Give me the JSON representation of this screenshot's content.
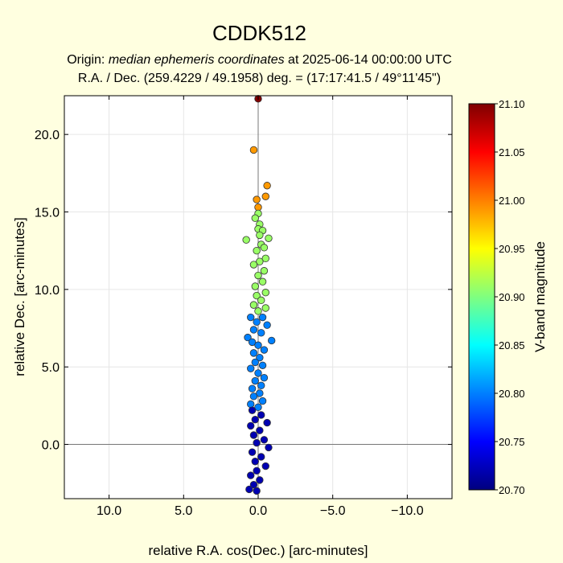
{
  "chart_data": {
    "type": "scatter",
    "title": "CDDK512",
    "subtitle_line1_prefix": "Origin: ",
    "subtitle_line1_italic": "median ephemeris coordinates",
    "subtitle_line1_suffix": " at 2025-06-14 00:00:00 UTC",
    "subtitle_line2": "R.A. / Dec. (259.4229 / 49.1958) deg. = (17:17:41.5 / 49°11'45\")",
    "xlabel": "relative R.A. cos(Dec.) [arc-minutes]",
    "ylabel": "relative Dec. [arc-minutes]",
    "xlim": [
      13.0,
      -13.0
    ],
    "ylim": [
      -3.5,
      22.5
    ],
    "x_ticks": [
      10.0,
      5.0,
      0.0,
      -5.0,
      -10.0
    ],
    "x_tick_labels": [
      "10.0",
      "5.0",
      "0.0",
      "−5.0",
      "−10.0"
    ],
    "y_ticks": [
      0.0,
      5.0,
      10.0,
      15.0,
      20.0
    ],
    "y_tick_labels": [
      "0.0",
      "5.0",
      "10.0",
      "15.0",
      "20.0"
    ],
    "grid": true,
    "colorbar": {
      "label": "V-band magnitude",
      "range": [
        20.7,
        21.1
      ],
      "ticks": [
        20.7,
        20.75,
        20.8,
        20.85,
        20.9,
        20.95,
        21.0,
        21.05,
        21.1
      ],
      "tick_labels": [
        "20.70",
        "20.75",
        "20.80",
        "20.85",
        "20.90",
        "20.95",
        "21.00",
        "21.05",
        "21.10"
      ],
      "colormap": "jet"
    },
    "series": [
      {
        "points": [
          {
            "x": 0.0,
            "y": 22.3,
            "mag": 21.1
          },
          {
            "x": 0.3,
            "y": 19.0,
            "mag": 20.99
          },
          {
            "x": -0.6,
            "y": 16.7,
            "mag": 20.99
          },
          {
            "x": -0.5,
            "y": 16.0,
            "mag": 20.99
          },
          {
            "x": 0.1,
            "y": 15.8,
            "mag": 20.99
          },
          {
            "x": 0.0,
            "y": 15.3,
            "mag": 20.99
          },
          {
            "x": 0.0,
            "y": 14.9,
            "mag": 20.91
          },
          {
            "x": 0.2,
            "y": 14.6,
            "mag": 20.91
          },
          {
            "x": -0.1,
            "y": 14.2,
            "mag": 20.91
          },
          {
            "x": 0.0,
            "y": 13.9,
            "mag": 20.91
          },
          {
            "x": -0.3,
            "y": 13.8,
            "mag": 20.91
          },
          {
            "x": -0.1,
            "y": 13.5,
            "mag": 20.91
          },
          {
            "x": 0.8,
            "y": 13.2,
            "mag": 20.91
          },
          {
            "x": -0.7,
            "y": 13.3,
            "mag": 20.91
          },
          {
            "x": -0.2,
            "y": 12.9,
            "mag": 20.91
          },
          {
            "x": -0.4,
            "y": 12.7,
            "mag": 20.91
          },
          {
            "x": 0.1,
            "y": 12.5,
            "mag": 20.91
          },
          {
            "x": -0.5,
            "y": 12.0,
            "mag": 20.91
          },
          {
            "x": -0.1,
            "y": 11.8,
            "mag": 20.91
          },
          {
            "x": 0.3,
            "y": 11.6,
            "mag": 20.91
          },
          {
            "x": -0.4,
            "y": 11.2,
            "mag": 20.91
          },
          {
            "x": 0.0,
            "y": 10.9,
            "mag": 20.91
          },
          {
            "x": -0.3,
            "y": 10.5,
            "mag": 20.91
          },
          {
            "x": 0.2,
            "y": 10.2,
            "mag": 20.91
          },
          {
            "x": -0.5,
            "y": 9.8,
            "mag": 20.91
          },
          {
            "x": 0.1,
            "y": 9.6,
            "mag": 20.91
          },
          {
            "x": -0.2,
            "y": 9.3,
            "mag": 20.91
          },
          {
            "x": 0.3,
            "y": 9.0,
            "mag": 20.91
          },
          {
            "x": -0.5,
            "y": 8.8,
            "mag": 20.91
          },
          {
            "x": 0.0,
            "y": 8.6,
            "mag": 20.91
          },
          {
            "x": 0.5,
            "y": 8.2,
            "mag": 20.8
          },
          {
            "x": -0.3,
            "y": 8.2,
            "mag": 20.8
          },
          {
            "x": 0.1,
            "y": 7.9,
            "mag": 20.8
          },
          {
            "x": -0.6,
            "y": 7.7,
            "mag": 20.8
          },
          {
            "x": 0.3,
            "y": 7.4,
            "mag": 20.8
          },
          {
            "x": -0.2,
            "y": 7.2,
            "mag": 20.8
          },
          {
            "x": 0.7,
            "y": 6.9,
            "mag": 20.8
          },
          {
            "x": -0.9,
            "y": 6.7,
            "mag": 20.8
          },
          {
            "x": 0.4,
            "y": 6.6,
            "mag": 20.8
          },
          {
            "x": 0.0,
            "y": 6.4,
            "mag": 20.8
          },
          {
            "x": -0.4,
            "y": 6.1,
            "mag": 20.8
          },
          {
            "x": 0.3,
            "y": 5.9,
            "mag": 20.8
          },
          {
            "x": -0.1,
            "y": 5.6,
            "mag": 20.8
          },
          {
            "x": 0.2,
            "y": 5.3,
            "mag": 20.8
          },
          {
            "x": -0.3,
            "y": 5.1,
            "mag": 20.8
          },
          {
            "x": 0.5,
            "y": 4.9,
            "mag": 20.8
          },
          {
            "x": 0.0,
            "y": 4.6,
            "mag": 20.8
          },
          {
            "x": -0.4,
            "y": 4.3,
            "mag": 20.8
          },
          {
            "x": 0.2,
            "y": 4.1,
            "mag": 20.8
          },
          {
            "x": -0.2,
            "y": 3.8,
            "mag": 20.8
          },
          {
            "x": 0.4,
            "y": 3.6,
            "mag": 20.8
          },
          {
            "x": -0.1,
            "y": 3.3,
            "mag": 20.8
          },
          {
            "x": 0.3,
            "y": 3.1,
            "mag": 20.8
          },
          {
            "x": -0.3,
            "y": 2.8,
            "mag": 20.8
          },
          {
            "x": 0.5,
            "y": 2.6,
            "mag": 20.8
          },
          {
            "x": 0.0,
            "y": 2.4,
            "mag": 20.8
          },
          {
            "x": 0.4,
            "y": 2.2,
            "mag": 20.72
          },
          {
            "x": -0.2,
            "y": 1.9,
            "mag": 20.72
          },
          {
            "x": 0.2,
            "y": 1.6,
            "mag": 20.72
          },
          {
            "x": -0.6,
            "y": 1.4,
            "mag": 20.72
          },
          {
            "x": 0.5,
            "y": 1.2,
            "mag": 20.72
          },
          {
            "x": -0.1,
            "y": 0.9,
            "mag": 20.72
          },
          {
            "x": 0.3,
            "y": 0.6,
            "mag": 20.72
          },
          {
            "x": -0.4,
            "y": 0.3,
            "mag": 20.72
          },
          {
            "x": 0.1,
            "y": 0.1,
            "mag": 20.72
          },
          {
            "x": -0.7,
            "y": -0.2,
            "mag": 20.72
          },
          {
            "x": 0.4,
            "y": -0.5,
            "mag": 20.72
          },
          {
            "x": -0.2,
            "y": -0.8,
            "mag": 20.72
          },
          {
            "x": 0.2,
            "y": -1.1,
            "mag": 20.72
          },
          {
            "x": -0.5,
            "y": -1.4,
            "mag": 20.72
          },
          {
            "x": 0.1,
            "y": -1.7,
            "mag": 20.72
          },
          {
            "x": 0.5,
            "y": -2.0,
            "mag": 20.72
          },
          {
            "x": -0.1,
            "y": -2.3,
            "mag": 20.72
          },
          {
            "x": 0.3,
            "y": -2.6,
            "mag": 20.72
          },
          {
            "x": 0.6,
            "y": -2.9,
            "mag": 20.72
          },
          {
            "x": 0.1,
            "y": -3.0,
            "mag": 20.72
          }
        ]
      }
    ]
  }
}
